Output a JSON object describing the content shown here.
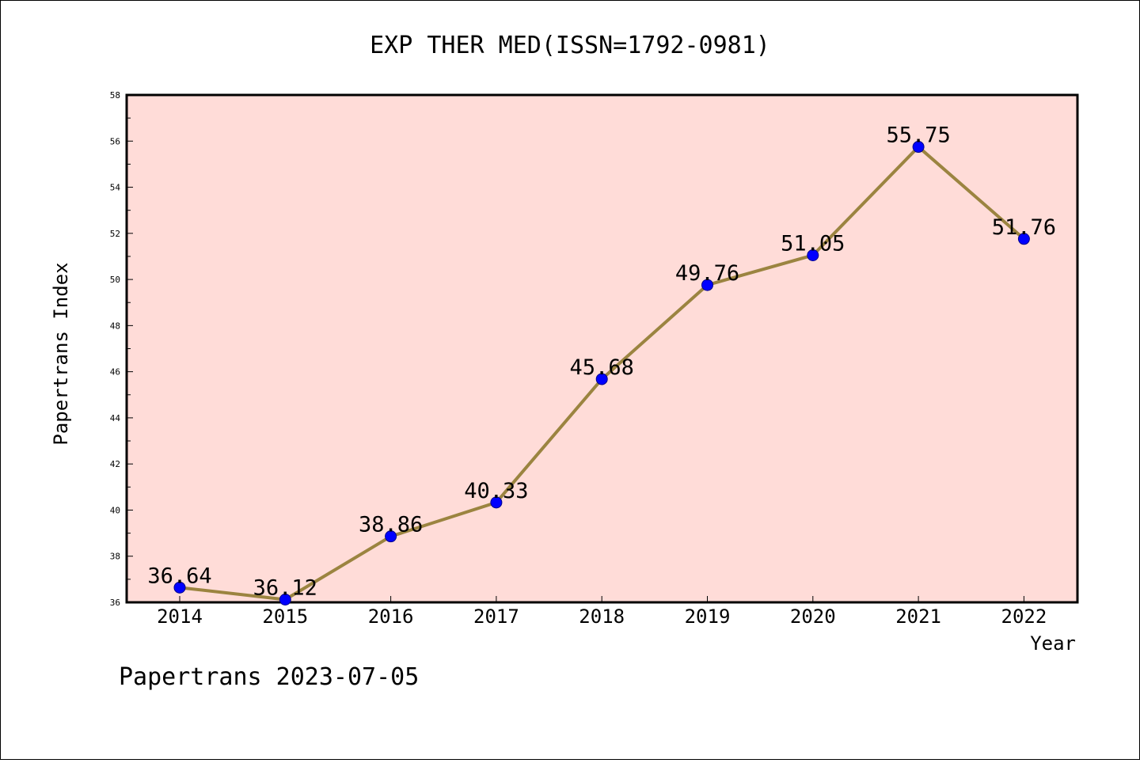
{
  "chart_data": {
    "type": "line",
    "title": "EXP THER MED(ISSN=1792-0981)",
    "xlabel": "Year",
    "ylabel": "Papertrans Index",
    "categories": [
      "2014",
      "2015",
      "2016",
      "2017",
      "2018",
      "2019",
      "2020",
      "2021",
      "2022"
    ],
    "values": [
      36.64,
      36.12,
      38.86,
      40.33,
      45.68,
      49.76,
      51.05,
      55.75,
      51.76
    ],
    "data_labels": [
      "36.64",
      "36.12",
      "38.86",
      "40.33",
      "45.68",
      "49.76",
      "51.05",
      "55.75",
      "51.76"
    ],
    "ylim": [
      36,
      58
    ],
    "y_ticks": [
      36,
      38,
      40,
      42,
      44,
      46,
      48,
      50,
      52,
      54,
      56,
      58
    ],
    "grid": false,
    "line_color": "#9b8440",
    "marker_color": "#0000ff",
    "plot_background": "#ffdcd8"
  },
  "footer": "Papertrans 2023-07-05"
}
